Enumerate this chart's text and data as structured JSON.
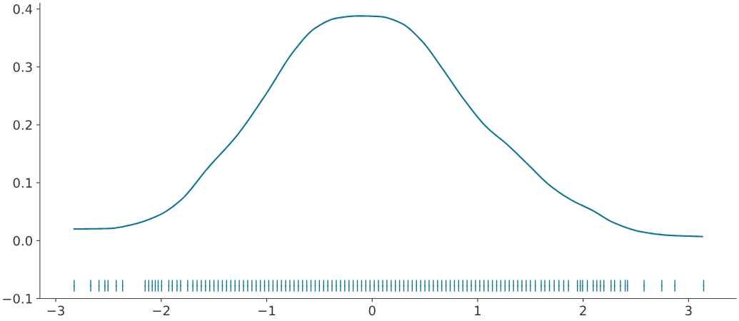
{
  "chart_data": {
    "type": "line",
    "xlim": [
      -3.15,
      3.45
    ],
    "ylim": [
      -0.1,
      0.41
    ],
    "xticks": [
      {
        "value": -3,
        "label": "−3"
      },
      {
        "value": -2,
        "label": "−2"
      },
      {
        "value": -1,
        "label": "−1"
      },
      0,
      1,
      2,
      3
    ],
    "yticks": [
      {
        "value": -0.1,
        "label": "−0.1"
      },
      {
        "value": 0,
        "label": "0.0"
      },
      0.1,
      0.2,
      0.3,
      0.4
    ],
    "grid": false,
    "legend": false,
    "series": [
      {
        "color": "#107591",
        "x": [
          -2.825,
          -2.49,
          -2.29,
          -2.02,
          -1.82,
          -1.55,
          -1.28,
          -1.01,
          -0.74,
          -0.54,
          -0.34,
          -0.13,
          0.07,
          0.27,
          0.47,
          0.67,
          0.87,
          1.08,
          1.28,
          1.48,
          1.68,
          1.88,
          2.09,
          2.29,
          2.56,
          2.83,
          3.13
        ],
        "values": [
          0.02,
          0.021,
          0.027,
          0.044,
          0.069,
          0.127,
          0.182,
          0.252,
          0.328,
          0.367,
          0.384,
          0.388,
          0.387,
          0.376,
          0.345,
          0.296,
          0.244,
          0.197,
          0.166,
          0.131,
          0.096,
          0.071,
          0.052,
          0.031,
          0.015,
          0.009,
          0.007
        ]
      },
      {
        "type": "scatter",
        "marker": "circle",
        "errors": [
          0.01,
          0.01,
          0.01,
          0.01,
          0.01,
          0.01,
          0.01,
          0.01,
          0.01,
          0.01,
          0.01,
          0.01,
          0.01,
          0.01,
          0.01,
          0.01,
          0.01,
          0.01,
          0.01,
          0.01,
          0.01,
          0.01,
          0.01,
          0.01,
          0.01,
          0.01,
          0.01,
          0.01,
          0.01,
          0.01,
          0.01,
          0.01,
          0.01,
          0.01,
          0.01,
          0.01,
          0.01,
          0.01,
          0.01,
          0.01,
          0.01,
          0.01,
          0.01,
          0.01,
          0.01,
          0.01,
          0.01,
          0.01,
          0.01,
          0.01,
          0.01,
          0.01,
          0.01,
          0.01,
          0.01,
          0.01,
          0.01,
          0.01,
          0.01,
          0.01,
          0.01,
          0.01,
          0.01,
          0.01,
          0.01,
          0.01,
          0.01,
          0.01,
          0.01,
          0.01,
          0.01,
          0.01,
          0.01,
          0.01,
          0.01,
          0.01,
          0.01,
          0.01,
          0.01,
          0.01,
          0.01,
          0.01,
          0.01,
          0.01,
          0.01,
          0.01,
          0.01,
          0.01,
          0.01,
          0.01,
          0.01,
          0.01,
          0.01,
          0.01,
          0.01,
          0.01,
          0.01,
          0.01,
          0.01,
          0.01,
          0.01,
          0.01,
          0.01,
          0.01,
          0.01,
          0.01,
          0.01,
          0.01,
          0.01,
          0.01,
          0.01,
          0.01,
          0.01,
          0.01,
          0.01,
          0.01,
          0.01,
          0.01,
          0.01,
          0.01,
          0.01,
          0.01,
          0.01,
          0.01
        ],
        "color": "#107591",
        "x": [
          -2.825,
          -2.668,
          -2.59,
          -2.534,
          -2.504,
          -2.426,
          -2.366,
          -2.152,
          -2.118,
          -2.085,
          -2.056,
          -2.029,
          -1.996,
          -1.928,
          -1.895,
          -1.85,
          -1.816,
          -1.749,
          -1.7,
          -1.66,
          -1.62,
          -1.58,
          -1.54,
          -1.5,
          -1.46,
          -1.42,
          -1.38,
          -1.34,
          -1.3,
          -1.26,
          -1.22,
          -1.18,
          -1.14,
          -1.1,
          -1.06,
          -1.02,
          -0.98,
          -0.94,
          -0.9,
          -0.86,
          -0.82,
          -0.78,
          -0.74,
          -0.7,
          -0.66,
          -0.62,
          -0.58,
          -0.54,
          -0.5,
          -0.46,
          -0.42,
          -0.38,
          -0.34,
          -0.3,
          -0.26,
          -0.22,
          -0.18,
          -0.14,
          -0.1,
          -0.06,
          -0.02,
          0.02,
          0.06,
          0.1,
          0.14,
          0.18,
          0.22,
          0.26,
          0.3,
          0.34,
          0.38,
          0.42,
          0.46,
          0.5,
          0.54,
          0.58,
          0.62,
          0.66,
          0.7,
          0.74,
          0.78,
          0.82,
          0.86,
          0.9,
          0.94,
          0.98,
          1.02,
          1.06,
          1.1,
          1.14,
          1.18,
          1.22,
          1.26,
          1.3,
          1.34,
          1.38,
          1.42,
          1.46,
          1.5,
          1.547,
          1.603,
          1.637,
          1.681,
          1.726,
          1.771,
          1.816,
          1.861,
          1.946,
          1.973,
          1.995,
          2.04,
          2.096,
          2.13,
          2.164,
          2.197,
          2.265,
          2.298,
          2.354,
          2.399,
          2.421,
          2.578,
          2.746,
          2.87,
          3.143
        ],
        "values": [
          -0.078,
          -0.078,
          -0.078,
          -0.078,
          -0.078,
          -0.078,
          -0.078,
          -0.078,
          -0.078,
          -0.078,
          -0.078,
          -0.078,
          -0.078,
          -0.078,
          -0.078,
          -0.078,
          -0.078,
          -0.078,
          -0.078,
          -0.078,
          -0.078,
          -0.078,
          -0.078,
          -0.078,
          -0.078,
          -0.078,
          -0.078,
          -0.078,
          -0.078,
          -0.078,
          -0.078,
          -0.078,
          -0.078,
          -0.078,
          -0.078,
          -0.078,
          -0.078,
          -0.078,
          -0.078,
          -0.078,
          -0.078,
          -0.078,
          -0.078,
          -0.078,
          -0.078,
          -0.078,
          -0.078,
          -0.078,
          -0.078,
          -0.078,
          -0.078,
          -0.078,
          -0.078,
          -0.078,
          -0.078,
          -0.078,
          -0.078,
          -0.078,
          -0.078,
          -0.078,
          -0.078,
          -0.078,
          -0.078,
          -0.078,
          -0.078,
          -0.078,
          -0.078,
          -0.078,
          -0.078,
          -0.078,
          -0.078,
          -0.078,
          -0.078,
          -0.078,
          -0.078,
          -0.078,
          -0.078,
          -0.078,
          -0.078,
          -0.078,
          -0.078,
          -0.078,
          -0.078,
          -0.078,
          -0.078,
          -0.078,
          -0.078,
          -0.078,
          -0.078,
          -0.078,
          -0.078,
          -0.078,
          -0.078,
          -0.078,
          -0.078,
          -0.078,
          -0.078,
          -0.078,
          -0.078,
          -0.078,
          -0.078,
          -0.078,
          -0.078,
          -0.078,
          -0.078,
          -0.078,
          -0.078,
          -0.078,
          -0.078,
          -0.078,
          -0.078,
          -0.078,
          -0.078,
          -0.078,
          -0.078,
          -0.078,
          -0.078,
          -0.078,
          -0.078,
          -0.078,
          -0.078,
          -0.078,
          -0.078,
          -0.078
        ]
      }
    ]
  }
}
